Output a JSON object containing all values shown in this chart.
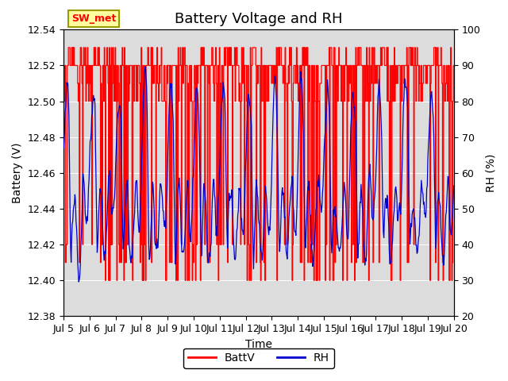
{
  "title": "Battery Voltage and RH",
  "xlabel": "Time",
  "ylabel_left": "Battery (V)",
  "ylabel_right": "RH (%)",
  "ylim_left": [
    12.38,
    12.54
  ],
  "ylim_right": [
    20,
    100
  ],
  "yticks_left": [
    12.38,
    12.4,
    12.42,
    12.44,
    12.46,
    12.48,
    12.5,
    12.52,
    12.54
  ],
  "yticks_right": [
    20,
    30,
    40,
    50,
    60,
    70,
    80,
    90,
    100
  ],
  "xtick_labels": [
    "Jul 5",
    "Jul 6",
    "Jul 7",
    "Jul 8",
    "Jul 9",
    "Jul 10",
    "Jul 11",
    "Jul 12",
    "Jul 13",
    "Jul 14",
    "Jul 15",
    "Jul 16",
    "Jul 17",
    "Jul 18",
    "Jul 19",
    "Jul 20"
  ],
  "station_label": "SW_met",
  "batt_color": "#FF0000",
  "rh_color": "#0000CC",
  "legend_items": [
    "BattV",
    "RH"
  ],
  "bg_color": "#DCDCDC",
  "title_fontsize": 13,
  "axis_fontsize": 10,
  "tick_fontsize": 9,
  "label_box_facecolor": "#FFFFA0",
  "label_box_edgecolor": "#999900"
}
